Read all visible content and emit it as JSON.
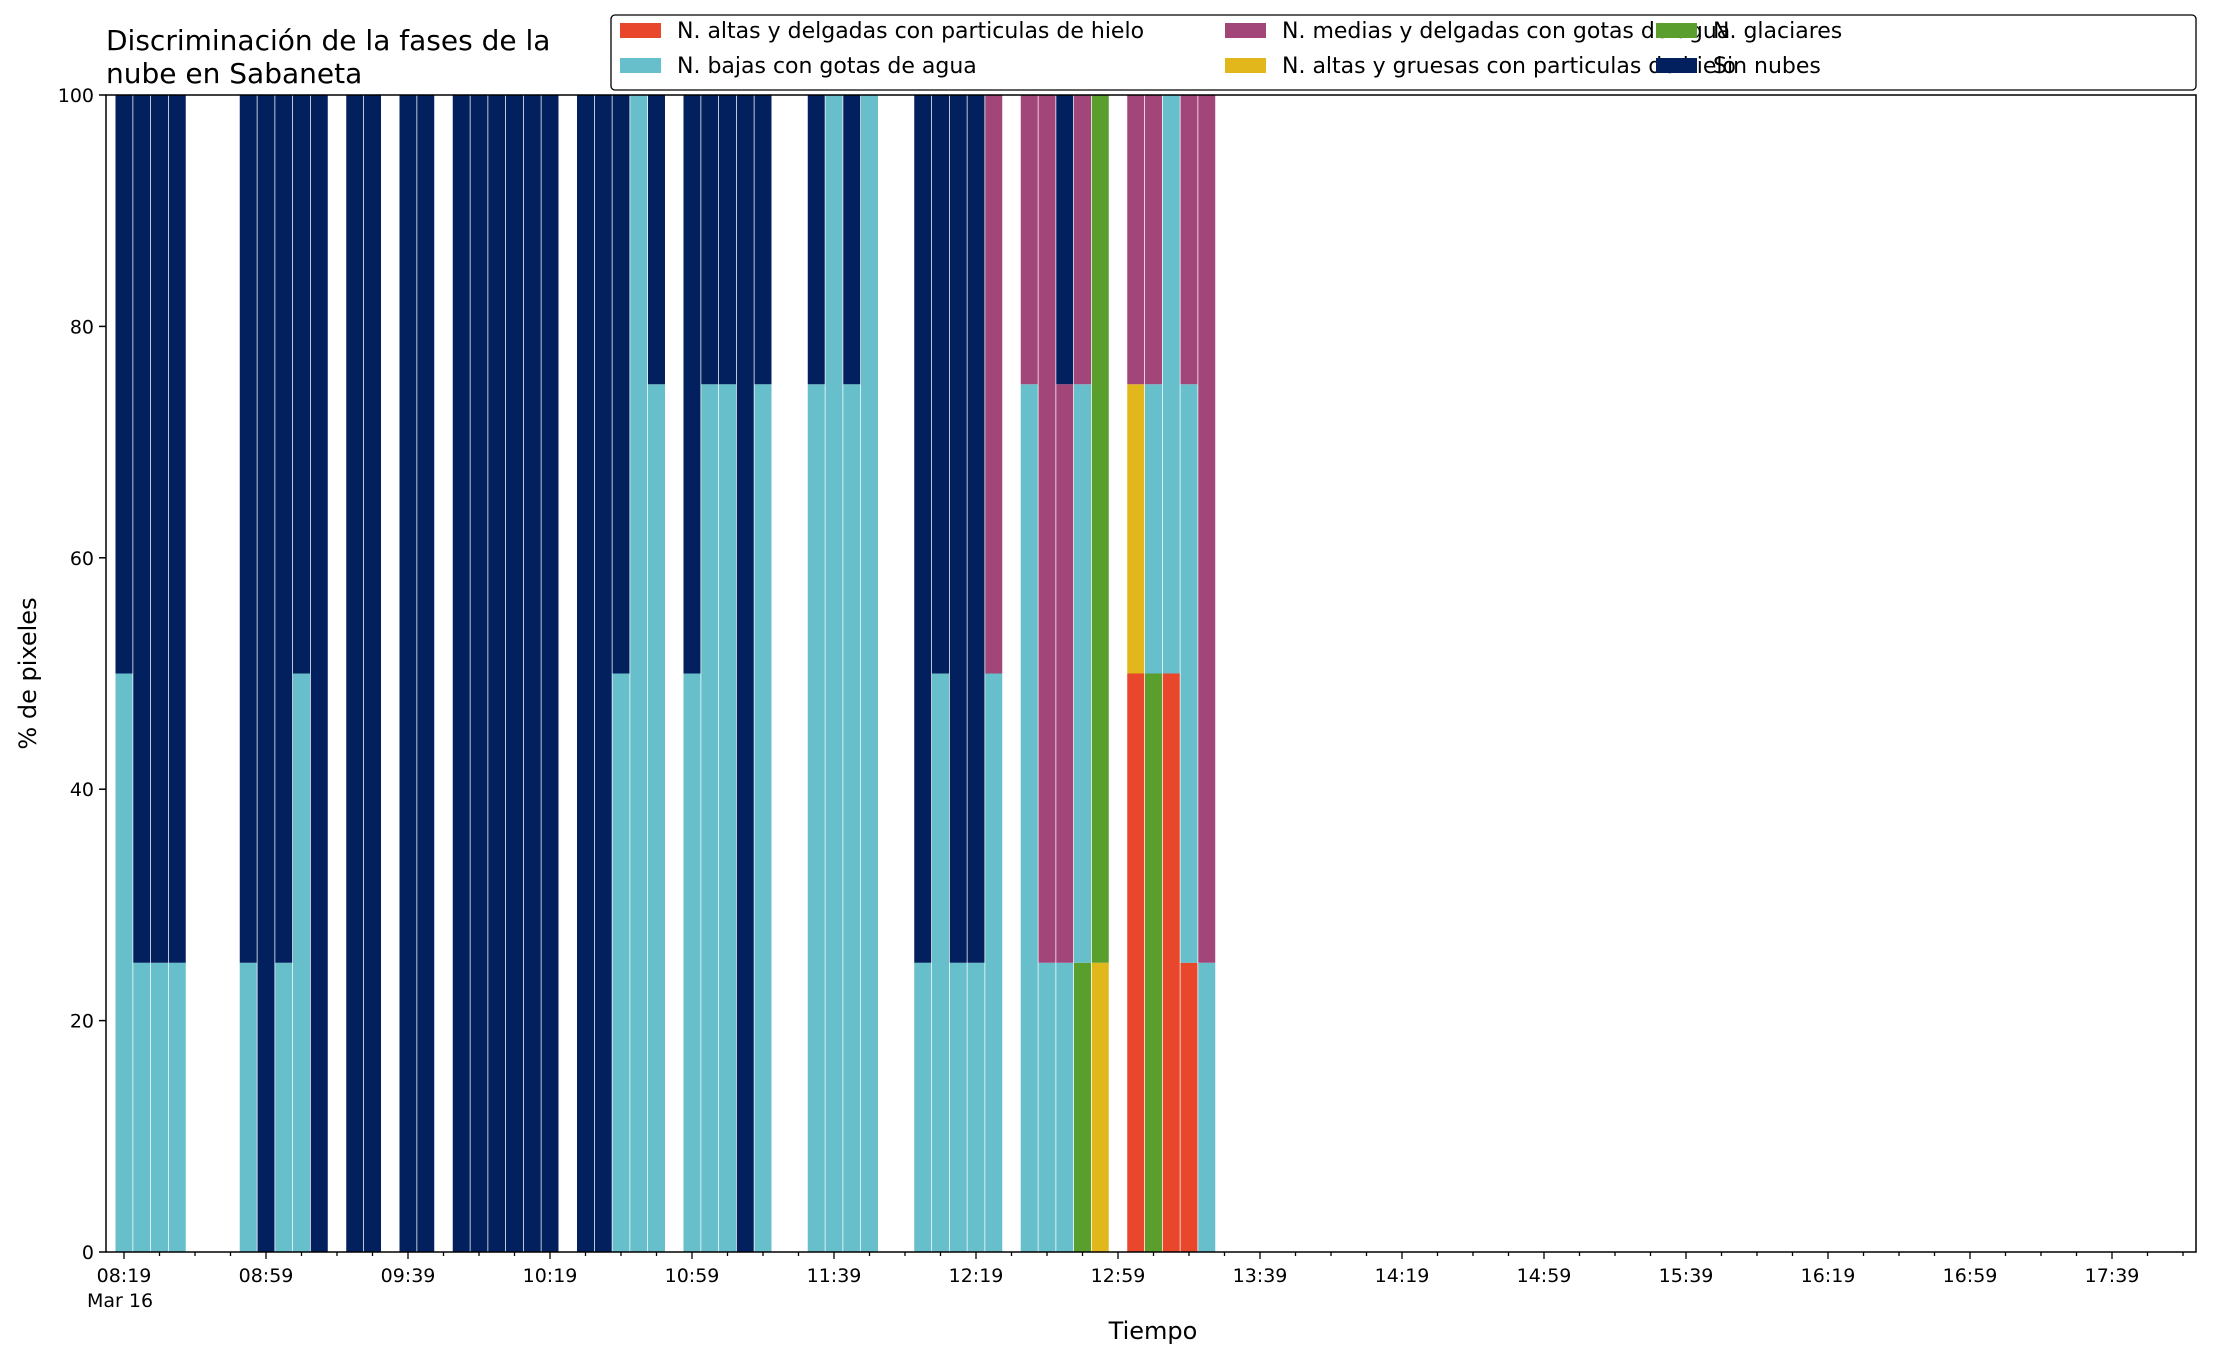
{
  "chart_data": {
    "type": "bar",
    "stacked": true,
    "title": [
      "Discriminación de la fases de la",
      "nube en Sabaneta"
    ],
    "xlabel": "Tiempo",
    "ylabel": "% de pixeles",
    "ylim": [
      0,
      100
    ],
    "yticks": [
      0,
      20,
      40,
      60,
      80,
      100
    ],
    "grid": false,
    "legend_position": "top-right",
    "x_tick_labels": [
      "08:19",
      "08:59",
      "09:39",
      "10:19",
      "10:59",
      "11:39",
      "12:19",
      "12:59",
      "13:39",
      "14:19",
      "14:59",
      "15:39",
      "16:19",
      "16:59",
      "17:39"
    ],
    "x_date_label": "Mar 16",
    "series": [
      {
        "key": "alta_delgada",
        "name": "N. altas y delgadas con particulas de hielo",
        "color": "#e8472c"
      },
      {
        "key": "alta_gruesa",
        "name": "N. altas y gruesas con particulas de hielo",
        "color": "#e2b71c"
      },
      {
        "key": "glaciar",
        "name": "N. glaciares",
        "color": "#5a9e2e"
      },
      {
        "key": "baja",
        "name": "N. bajas con gotas de agua",
        "color": "#66bfca"
      },
      {
        "key": "media",
        "name": "N. medias y delgadas con gotas de agua",
        "color": "#a24579"
      },
      {
        "key": "sin",
        "name": "Sin nubes",
        "color": "#021f5e"
      }
    ],
    "legend_order": [
      "alta_delgada",
      "baja",
      "media",
      "alta_gruesa",
      "glaciar",
      "sin"
    ],
    "bars": [
      {
        "time": "08:19",
        "alta_delgada": 0,
        "alta_gruesa": 0,
        "glaciar": 0,
        "baja": 50,
        "media": 0,
        "sin": 50
      },
      {
        "time": "08:24",
        "alta_delgada": 0,
        "alta_gruesa": 0,
        "glaciar": 0,
        "baja": 25,
        "media": 0,
        "sin": 75
      },
      {
        "time": "08:29",
        "alta_delgada": 0,
        "alta_gruesa": 0,
        "glaciar": 0,
        "baja": 25,
        "media": 0,
        "sin": 75
      },
      {
        "time": "08:34",
        "alta_delgada": 0,
        "alta_gruesa": 0,
        "glaciar": 0,
        "baja": 25,
        "media": 0,
        "sin": 75
      },
      {
        "time": "08:54",
        "alta_delgada": 0,
        "alta_gruesa": 0,
        "glaciar": 0,
        "baja": 25,
        "media": 0,
        "sin": 75
      },
      {
        "time": "08:59",
        "alta_delgada": 0,
        "alta_gruesa": 0,
        "glaciar": 0,
        "baja": 0,
        "media": 0,
        "sin": 100
      },
      {
        "time": "09:04",
        "alta_delgada": 0,
        "alta_gruesa": 0,
        "glaciar": 0,
        "baja": 25,
        "media": 0,
        "sin": 75
      },
      {
        "time": "09:09",
        "alta_delgada": 0,
        "alta_gruesa": 0,
        "glaciar": 0,
        "baja": 50,
        "media": 0,
        "sin": 50
      },
      {
        "time": "09:14",
        "alta_delgada": 0,
        "alta_gruesa": 0,
        "glaciar": 0,
        "baja": 0,
        "media": 0,
        "sin": 100
      },
      {
        "time": "09:24",
        "alta_delgada": 0,
        "alta_gruesa": 0,
        "glaciar": 0,
        "baja": 0,
        "media": 0,
        "sin": 100
      },
      {
        "time": "09:29",
        "alta_delgada": 0,
        "alta_gruesa": 0,
        "glaciar": 0,
        "baja": 0,
        "media": 0,
        "sin": 100
      },
      {
        "time": "09:39",
        "alta_delgada": 0,
        "alta_gruesa": 0,
        "glaciar": 0,
        "baja": 0,
        "media": 0,
        "sin": 100
      },
      {
        "time": "09:44",
        "alta_delgada": 0,
        "alta_gruesa": 0,
        "glaciar": 0,
        "baja": 0,
        "media": 0,
        "sin": 100
      },
      {
        "time": "09:54",
        "alta_delgada": 0,
        "alta_gruesa": 0,
        "glaciar": 0,
        "baja": 0,
        "media": 0,
        "sin": 100
      },
      {
        "time": "09:59",
        "alta_delgada": 0,
        "alta_gruesa": 0,
        "glaciar": 0,
        "baja": 0,
        "media": 0,
        "sin": 100
      },
      {
        "time": "10:04",
        "alta_delgada": 0,
        "alta_gruesa": 0,
        "glaciar": 0,
        "baja": 0,
        "media": 0,
        "sin": 100
      },
      {
        "time": "10:09",
        "alta_delgada": 0,
        "alta_gruesa": 0,
        "glaciar": 0,
        "baja": 0,
        "media": 0,
        "sin": 100
      },
      {
        "time": "10:14",
        "alta_delgada": 0,
        "alta_gruesa": 0,
        "glaciar": 0,
        "baja": 0,
        "media": 0,
        "sin": 100
      },
      {
        "time": "10:19",
        "alta_delgada": 0,
        "alta_gruesa": 0,
        "glaciar": 0,
        "baja": 0,
        "media": 0,
        "sin": 100
      },
      {
        "time": "10:29",
        "alta_delgada": 0,
        "alta_gruesa": 0,
        "glaciar": 0,
        "baja": 0,
        "media": 0,
        "sin": 100
      },
      {
        "time": "10:34",
        "alta_delgada": 0,
        "alta_gruesa": 0,
        "glaciar": 0,
        "baja": 0,
        "media": 0,
        "sin": 100
      },
      {
        "time": "10:39",
        "alta_delgada": 0,
        "alta_gruesa": 0,
        "glaciar": 0,
        "baja": 50,
        "media": 0,
        "sin": 50
      },
      {
        "time": "10:44",
        "alta_delgada": 0,
        "alta_gruesa": 0,
        "glaciar": 0,
        "baja": 100,
        "media": 0,
        "sin": 0
      },
      {
        "time": "10:49",
        "alta_delgada": 0,
        "alta_gruesa": 0,
        "glaciar": 0,
        "baja": 75,
        "media": 0,
        "sin": 25
      },
      {
        "time": "10:59",
        "alta_delgada": 0,
        "alta_gruesa": 0,
        "glaciar": 0,
        "baja": 50,
        "media": 0,
        "sin": 50
      },
      {
        "time": "11:04",
        "alta_delgada": 0,
        "alta_gruesa": 0,
        "glaciar": 0,
        "baja": 75,
        "media": 0,
        "sin": 25
      },
      {
        "time": "11:09",
        "alta_delgada": 0,
        "alta_gruesa": 0,
        "glaciar": 0,
        "baja": 75,
        "media": 0,
        "sin": 25
      },
      {
        "time": "11:14",
        "alta_delgada": 0,
        "alta_gruesa": 0,
        "glaciar": 0,
        "baja": 0,
        "media": 0,
        "sin": 100
      },
      {
        "time": "11:19",
        "alta_delgada": 0,
        "alta_gruesa": 0,
        "glaciar": 0,
        "baja": 75,
        "media": 0,
        "sin": 25
      },
      {
        "time": "11:34",
        "alta_delgada": 0,
        "alta_gruesa": 0,
        "glaciar": 0,
        "baja": 75,
        "media": 0,
        "sin": 25
      },
      {
        "time": "11:39",
        "alta_delgada": 0,
        "alta_gruesa": 0,
        "glaciar": 0,
        "baja": 100,
        "media": 0,
        "sin": 0
      },
      {
        "time": "11:44",
        "alta_delgada": 0,
        "alta_gruesa": 0,
        "glaciar": 0,
        "baja": 75,
        "media": 0,
        "sin": 25
      },
      {
        "time": "11:49",
        "alta_delgada": 0,
        "alta_gruesa": 0,
        "glaciar": 0,
        "baja": 100,
        "media": 0,
        "sin": 0
      },
      {
        "time": "12:04",
        "alta_delgada": 0,
        "alta_gruesa": 0,
        "glaciar": 0,
        "baja": 25,
        "media": 0,
        "sin": 75
      },
      {
        "time": "12:09",
        "alta_delgada": 0,
        "alta_gruesa": 0,
        "glaciar": 0,
        "baja": 50,
        "media": 0,
        "sin": 50
      },
      {
        "time": "12:14",
        "alta_delgada": 0,
        "alta_gruesa": 0,
        "glaciar": 0,
        "baja": 25,
        "media": 0,
        "sin": 75
      },
      {
        "time": "12:19",
        "alta_delgada": 0,
        "alta_gruesa": 0,
        "glaciar": 0,
        "baja": 25,
        "media": 0,
        "sin": 75
      },
      {
        "time": "12:24",
        "alta_delgada": 0,
        "alta_gruesa": 0,
        "glaciar": 0,
        "baja": 50,
        "media": 50,
        "sin": 0
      },
      {
        "time": "12:34",
        "alta_delgada": 0,
        "alta_gruesa": 0,
        "glaciar": 0,
        "baja": 75,
        "media": 25,
        "sin": 0
      },
      {
        "time": "12:39",
        "alta_delgada": 0,
        "alta_gruesa": 0,
        "glaciar": 0,
        "baja": 25,
        "media": 75,
        "sin": 0
      },
      {
        "time": "12:44",
        "alta_delgada": 0,
        "alta_gruesa": 0,
        "glaciar": 0,
        "baja": 25,
        "media": 50,
        "sin": 25
      },
      {
        "time": "12:49",
        "alta_delgada": 0,
        "alta_gruesa": 0,
        "glaciar": 25,
        "baja": 50,
        "media": 25,
        "sin": 0
      },
      {
        "time": "12:54",
        "alta_delgada": 0,
        "alta_gruesa": 25,
        "glaciar": 75,
        "baja": 0,
        "media": 0,
        "sin": 0
      },
      {
        "time": "13:04",
        "alta_delgada": 50,
        "alta_gruesa": 25,
        "glaciar": 0,
        "baja": 0,
        "media": 25,
        "sin": 0
      },
      {
        "time": "13:09",
        "alta_delgada": 0,
        "alta_gruesa": 0,
        "glaciar": 50,
        "baja": 25,
        "media": 25,
        "sin": 0
      },
      {
        "time": "13:14",
        "alta_delgada": 50,
        "alta_gruesa": 0,
        "glaciar": 0,
        "baja": 50,
        "media": 0,
        "sin": 0
      },
      {
        "time": "13:19",
        "alta_delgada": 25,
        "alta_gruesa": 0,
        "glaciar": 0,
        "baja": 50,
        "media": 25,
        "sin": 0
      },
      {
        "time": "13:24",
        "alta_delgada": 0,
        "alta_gruesa": 0,
        "glaciar": 0,
        "baja": 25,
        "media": 75,
        "sin": 0
      }
    ]
  }
}
